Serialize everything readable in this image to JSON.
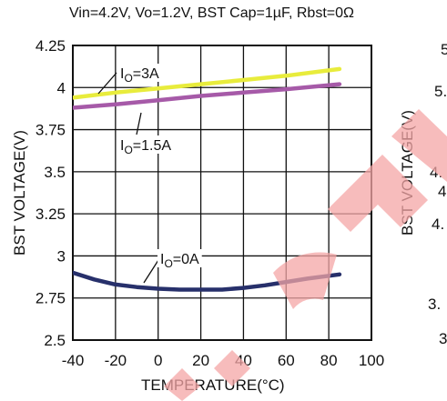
{
  "chart_data": [
    {
      "type": "line",
      "title": "Vin=4.2V, Vo=1.2V, BST Cap=1µF, Rbst=0Ω",
      "xlabel": "TEMPERATURE(°C)",
      "ylabel": "BST VOLTAGE(V)",
      "xlim": [
        -40,
        100
      ],
      "ylim": [
        2.5,
        4.25
      ],
      "x_ticks": [
        "-40",
        "-20",
        "0",
        "20",
        "40",
        "60",
        "80",
        "100"
      ],
      "y_ticks": [
        "2.5",
        "2.75",
        "3",
        "3.25",
        "3.5",
        "3.75",
        "4",
        "4.25"
      ],
      "grid": true,
      "series": [
        {
          "name": "IO=3A",
          "label_main": "I",
          "label_sub": "O",
          "label_tail": "=3A",
          "color": "#e8ec3c",
          "x": [
            -40,
            -20,
            0,
            20,
            40,
            60,
            85
          ],
          "y": [
            3.94,
            3.97,
            3.995,
            4.02,
            4.045,
            4.07,
            4.11
          ]
        },
        {
          "name": "IO=1.5A",
          "label_main": "I",
          "label_sub": "O",
          "label_tail": "=1.5A",
          "color": "#a65aa8",
          "x": [
            -40,
            -20,
            0,
            20,
            40,
            60,
            85
          ],
          "y": [
            3.88,
            3.9,
            3.925,
            3.95,
            3.97,
            3.99,
            4.02
          ]
        },
        {
          "name": "IO=0A",
          "label_main": "I",
          "label_sub": "O",
          "label_tail": "=0A",
          "color": "#27306b",
          "x": [
            -40,
            -30,
            -20,
            -10,
            0,
            10,
            20,
            30,
            40,
            50,
            60,
            70,
            85
          ],
          "y": [
            2.9,
            2.86,
            2.83,
            2.815,
            2.805,
            2.8,
            2.8,
            2.8,
            2.81,
            2.825,
            2.845,
            2.865,
            2.89
          ]
        }
      ]
    },
    {
      "type": "line",
      "title": "",
      "ylabel": "BST VOLTAGE(V)",
      "tick_fragments": [
        "5",
        "5.",
        "4.",
        "4",
        "4.",
        "3.",
        "3"
      ]
    }
  ]
}
